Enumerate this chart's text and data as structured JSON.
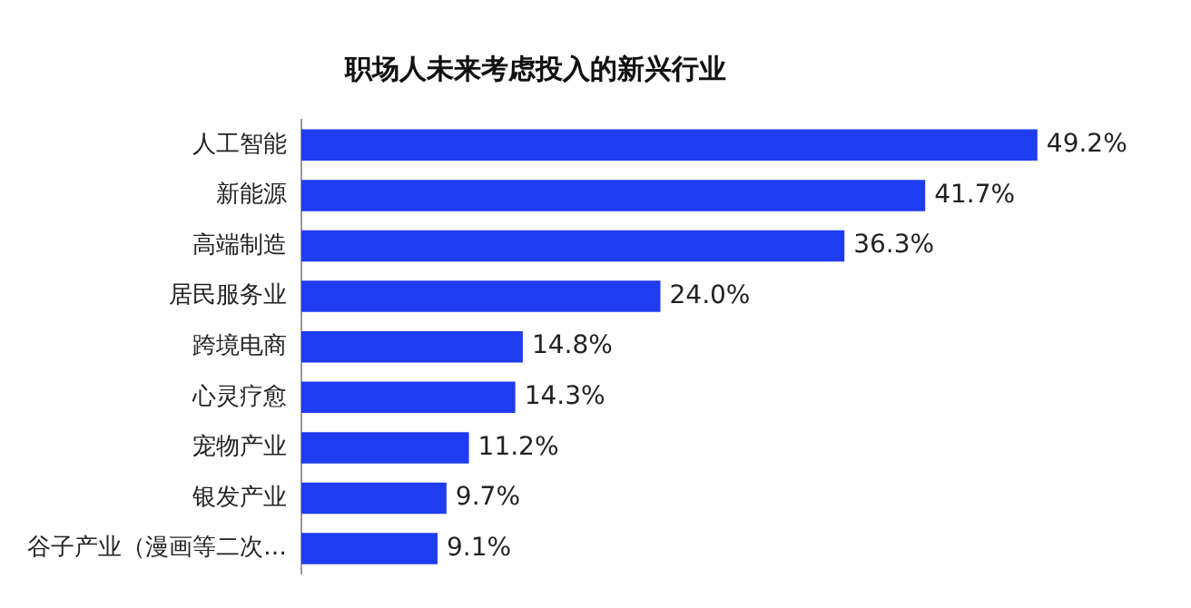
{
  "chart_data": {
    "type": "bar",
    "orientation": "horizontal",
    "title": "职场人未来考虑投入的新兴行业",
    "categories": [
      "人工智能",
      "新能源",
      "高端制造",
      "居民服务业",
      "跨境电商",
      "心灵疗愈",
      "宠物产业",
      "银发产业",
      "谷子产业（漫画等二次…"
    ],
    "values": [
      49.2,
      41.7,
      36.3,
      24.0,
      14.8,
      14.3,
      11.2,
      9.7,
      9.1
    ],
    "value_labels": [
      "49.2%",
      "41.7%",
      "36.3%",
      "24.0%",
      "14.8%",
      "14.3%",
      "11.2%",
      "9.7%",
      "9.1%"
    ],
    "color": "#1f3cf0",
    "tick_labels": "y"
  }
}
